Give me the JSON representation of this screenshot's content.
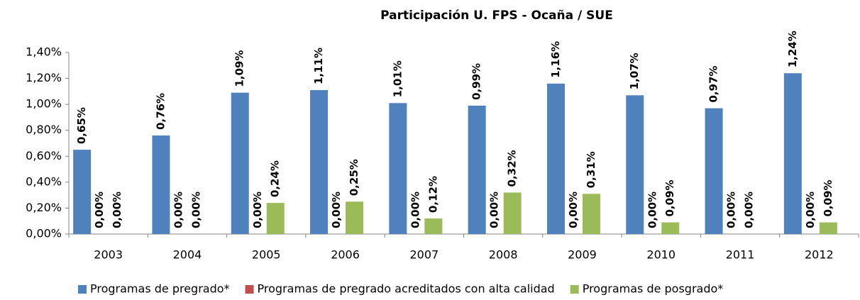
{
  "chart_data": {
    "type": "bar",
    "title": "Participación U. FPS - Ocaña / SUE",
    "categories": [
      "2003",
      "2004",
      "2005",
      "2006",
      "2007",
      "2008",
      "2009",
      "2010",
      "2011",
      "2012"
    ],
    "series": [
      {
        "name": "Programas de pregrado*",
        "color": "#4f81bd",
        "values": [
          0.65,
          0.76,
          1.09,
          1.11,
          1.01,
          0.99,
          1.16,
          1.07,
          0.97,
          1.24
        ],
        "value_labels": [
          "0,65%",
          "0,76%",
          "1,09%",
          "1,11%",
          "1,01%",
          "0,99%",
          "1,16%",
          "1,07%",
          "0,97%",
          "1,24%"
        ]
      },
      {
        "name": "Programas de pregrado acreditados con alta calidad",
        "color": "#c0504d",
        "values": [
          0,
          0,
          0,
          0,
          0,
          0,
          0,
          0,
          0,
          0
        ],
        "value_labels": [
          "0,00%",
          "0,00%",
          "0,00%",
          "0,00%",
          "0,00%",
          "0,00%",
          "0,00%",
          "0,00%",
          "0,00%",
          "0,00%"
        ]
      },
      {
        "name": "Programas de posgrado*",
        "color": "#9bbb59",
        "values": [
          0,
          0,
          0.24,
          0.25,
          0.12,
          0.32,
          0.31,
          0.09,
          0,
          0.09
        ],
        "value_labels": [
          "0,00%",
          "0,00%",
          "0,24%",
          "0,25%",
          "0,12%",
          "0,32%",
          "0,31%",
          "0,09%",
          "0,00%",
          "0,09%"
        ]
      }
    ],
    "ylim": [
      0,
      1.4
    ],
    "yticks": [
      {
        "value": 0,
        "label": "0,00%"
      },
      {
        "value": 0.2,
        "label": "0,20%"
      },
      {
        "value": 0.4,
        "label": "0,40%"
      },
      {
        "value": 0.6,
        "label": "0,60%"
      },
      {
        "value": 0.8,
        "label": "0,80%"
      },
      {
        "value": 1.0,
        "label": "1,00%"
      },
      {
        "value": 1.2,
        "label": "1,20%"
      },
      {
        "value": 1.4,
        "label": "1,40%"
      }
    ],
    "grid": false,
    "legend": "bottom"
  }
}
